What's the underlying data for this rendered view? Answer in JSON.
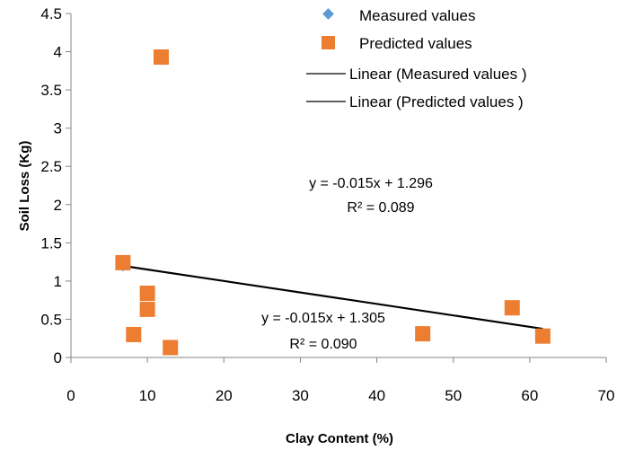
{
  "chart_data": {
    "type": "scatter",
    "xlabel": "Clay Content (%)",
    "ylabel": "Soil Loss  (Kg)",
    "xlim": [
      0,
      70
    ],
    "ylim": [
      0,
      4.5
    ],
    "xticks": [
      "0",
      "10",
      "20",
      "30",
      "40",
      "50",
      "60",
      "70"
    ],
    "yticks": [
      "0",
      "0.5",
      "1",
      "1.5",
      "2",
      "2.5",
      "3",
      "3.5",
      "4",
      "4.5"
    ],
    "grid": false,
    "legend_position": "top-right",
    "series": [
      {
        "name": "Measured values",
        "marker": "diamond",
        "color": "#5B9BD5",
        "points": [
          [
            6.8,
            1.2
          ],
          [
            8.2,
            0.32
          ],
          [
            10.0,
            0.83
          ],
          [
            10.0,
            0.64
          ],
          [
            11.8,
            3.9
          ],
          [
            13.0,
            0.14
          ],
          [
            46.0,
            0.31
          ],
          [
            57.7,
            0.66
          ],
          [
            61.7,
            0.28
          ]
        ]
      },
      {
        "name": "Predicted values",
        "marker": "square",
        "color": "#ED7D31",
        "points": [
          [
            6.8,
            1.24
          ],
          [
            8.2,
            0.3
          ],
          [
            10.0,
            0.84
          ],
          [
            10.0,
            0.63
          ],
          [
            11.8,
            3.93
          ],
          [
            13.0,
            0.13
          ],
          [
            46.0,
            0.31
          ],
          [
            57.7,
            0.65
          ],
          [
            61.7,
            0.28
          ]
        ]
      }
    ],
    "trendlines": [
      {
        "name": "Linear (Measured values )",
        "color": "#000000",
        "slope": -0.015,
        "intercept": 1.305,
        "x_range": [
          6.8,
          61.7
        ],
        "equation": "y = -0.015x + 1.305",
        "r2": "R² = 0.090"
      },
      {
        "name": "Linear (Predicted values )",
        "color": "#000000",
        "slope": -0.015,
        "intercept": 1.296,
        "x_range": [
          6.8,
          61.7
        ],
        "equation": "y = -0.015x + 1.296",
        "r2": "R² = 0.089"
      }
    ]
  }
}
